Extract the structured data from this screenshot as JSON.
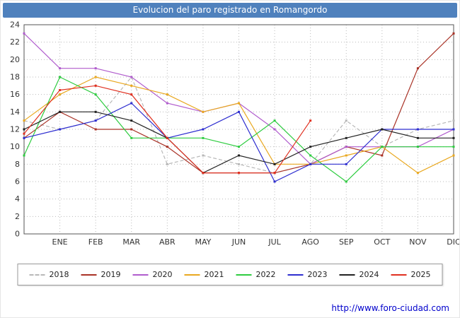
{
  "title": "Evolucion del paro registrado en Romangordo",
  "footer": {
    "url": "http://www.foro-ciudad.com"
  },
  "colors": {
    "title_bar": "#4f81bd",
    "grid": "#bbbbbb",
    "axis_border": "#555555",
    "tick_text": "#333333"
  },
  "chart_data": {
    "type": "line",
    "title": "Evolucion del paro registrado en Romangordo",
    "categories": [
      "",
      "ENE",
      "FEB",
      "MAR",
      "ABR",
      "MAY",
      "JUN",
      "JUL",
      "AGO",
      "SEP",
      "OCT",
      "NOV",
      "DIC"
    ],
    "ylim": [
      0,
      24
    ],
    "ytick_step": 2,
    "grid": true,
    "legend_position": "bottom",
    "series": [
      {
        "name": "2018",
        "color": "#b8b8b8",
        "dashed": true,
        "values": [
          13,
          12,
          13,
          18,
          8,
          9,
          8,
          7,
          8,
          13,
          10,
          12,
          13
        ]
      },
      {
        "name": "2019",
        "color": "#a93226",
        "dashed": false,
        "values": [
          11,
          14,
          12,
          12,
          10,
          7,
          7,
          7,
          8,
          10,
          9,
          19,
          23
        ]
      },
      {
        "name": "2020",
        "color": "#b05ccd",
        "dashed": false,
        "values": [
          23,
          19,
          19,
          18,
          15,
          14,
          15,
          12,
          8,
          10,
          10,
          10,
          12
        ]
      },
      {
        "name": "2021",
        "color": "#e9a820",
        "dashed": false,
        "values": [
          13,
          16,
          18,
          17,
          16,
          14,
          15,
          8,
          8,
          9,
          10,
          7,
          9
        ]
      },
      {
        "name": "2022",
        "color": "#2ecc40",
        "dashed": false,
        "values": [
          9,
          18,
          16,
          11,
          11,
          11,
          10,
          13,
          9,
          6,
          10,
          10,
          10
        ]
      },
      {
        "name": "2023",
        "color": "#2e2ed0",
        "dashed": false,
        "values": [
          11,
          12,
          13,
          15,
          11,
          12,
          14,
          6,
          8,
          8,
          12,
          12,
          12
        ]
      },
      {
        "name": "2024",
        "color": "#222222",
        "dashed": false,
        "values": [
          12,
          14,
          14,
          13,
          11,
          7,
          9,
          8,
          10,
          11,
          12,
          11,
          11
        ]
      },
      {
        "name": "2025",
        "color": "#e03020",
        "dashed": false,
        "values": [
          11.5,
          16.5,
          17,
          16,
          11,
          7,
          7,
          7,
          13,
          null,
          null,
          null,
          null
        ]
      }
    ]
  }
}
